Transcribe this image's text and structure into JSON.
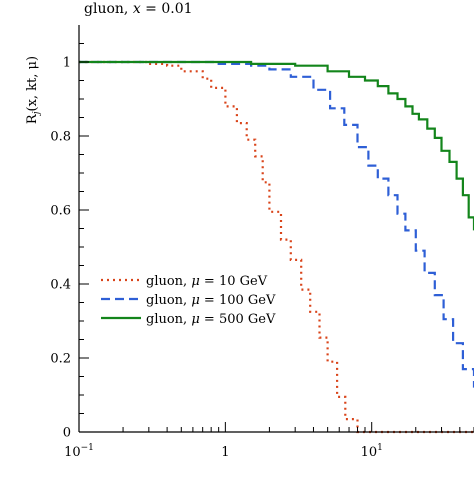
{
  "chart_data": {
    "type": "line",
    "title": "gluon, x = 0.01",
    "title_parts": {
      "prefix": "gluon, ",
      "var": "x",
      "suffix": " = 0.01"
    },
    "ylabel": "R_j(x, kt, μ)",
    "ylabel_parts": {
      "base": "R",
      "sub": "j",
      "rest": "(x, kt, μ)"
    },
    "xlabel": "",
    "x_scale": "log",
    "xlim": [
      0.1,
      50
    ],
    "ylim": [
      0,
      1.1
    ],
    "grid": false,
    "step": true,
    "legend_position": "lower-left",
    "x_ticks": [
      {
        "value": 0.1,
        "base": "10",
        "exp": "−1"
      },
      {
        "value": 1,
        "base": "1",
        "exp": ""
      },
      {
        "value": 10,
        "base": "10",
        "exp": "1"
      }
    ],
    "y_ticks": [
      {
        "value": 0,
        "label": "0"
      },
      {
        "value": 0.2,
        "label": "0.2"
      },
      {
        "value": 0.4,
        "label": "0.4"
      },
      {
        "value": 0.6,
        "label": "0.6"
      },
      {
        "value": 0.8,
        "label": "0.8"
      },
      {
        "value": 1,
        "label": "1"
      }
    ],
    "series": [
      {
        "name": "gluon, μ = 10 GeV",
        "name_parts": {
          "prefix": "gluon, ",
          "var": "μ",
          "suffix": " = 10 GeV"
        },
        "color": "#d9441a",
        "style": "dotted",
        "x": [
          0.1,
          0.3,
          0.4,
          0.5,
          0.7,
          0.8,
          1.0,
          1.2,
          1.4,
          1.6,
          1.8,
          2.0,
          2.4,
          2.8,
          3.3,
          3.8,
          4.4,
          5.0,
          5.8,
          6.6,
          8.0,
          50
        ],
        "y": [
          1.0,
          0.995,
          0.99,
          0.975,
          0.955,
          0.93,
          0.88,
          0.835,
          0.79,
          0.745,
          0.675,
          0.595,
          0.52,
          0.465,
          0.385,
          0.325,
          0.255,
          0.19,
          0.095,
          0.035,
          0.0,
          0.0
        ]
      },
      {
        "name": "gluon, μ = 100 GeV",
        "name_parts": {
          "prefix": "gluon, ",
          "var": "μ",
          "suffix": " = 100 GeV"
        },
        "color": "#2e5fd6",
        "style": "dashed",
        "x": [
          0.1,
          0.9,
          1.5,
          2.0,
          2.8,
          4.0,
          5.2,
          6.5,
          8.0,
          9.5,
          11,
          13,
          15,
          17,
          20,
          23,
          27,
          31,
          36,
          42,
          50
        ],
        "y": [
          1.0,
          0.995,
          0.99,
          0.98,
          0.96,
          0.925,
          0.875,
          0.83,
          0.77,
          0.72,
          0.685,
          0.64,
          0.59,
          0.545,
          0.49,
          0.43,
          0.37,
          0.305,
          0.24,
          0.17,
          0.12
        ]
      },
      {
        "name": "gluon, μ = 500 GeV",
        "name_parts": {
          "prefix": "gluon, ",
          "var": "μ",
          "suffix": " = 500 GeV"
        },
        "color": "#13851b",
        "style": "solid",
        "x": [
          0.1,
          1.5,
          3.0,
          5.0,
          7.0,
          9.0,
          11,
          13,
          15,
          17,
          19,
          21,
          24,
          27,
          30,
          34,
          38,
          42,
          46,
          50
        ],
        "y": [
          1.0,
          0.995,
          0.99,
          0.975,
          0.96,
          0.95,
          0.935,
          0.915,
          0.9,
          0.88,
          0.86,
          0.845,
          0.82,
          0.795,
          0.76,
          0.73,
          0.685,
          0.64,
          0.58,
          0.545
        ]
      }
    ]
  }
}
